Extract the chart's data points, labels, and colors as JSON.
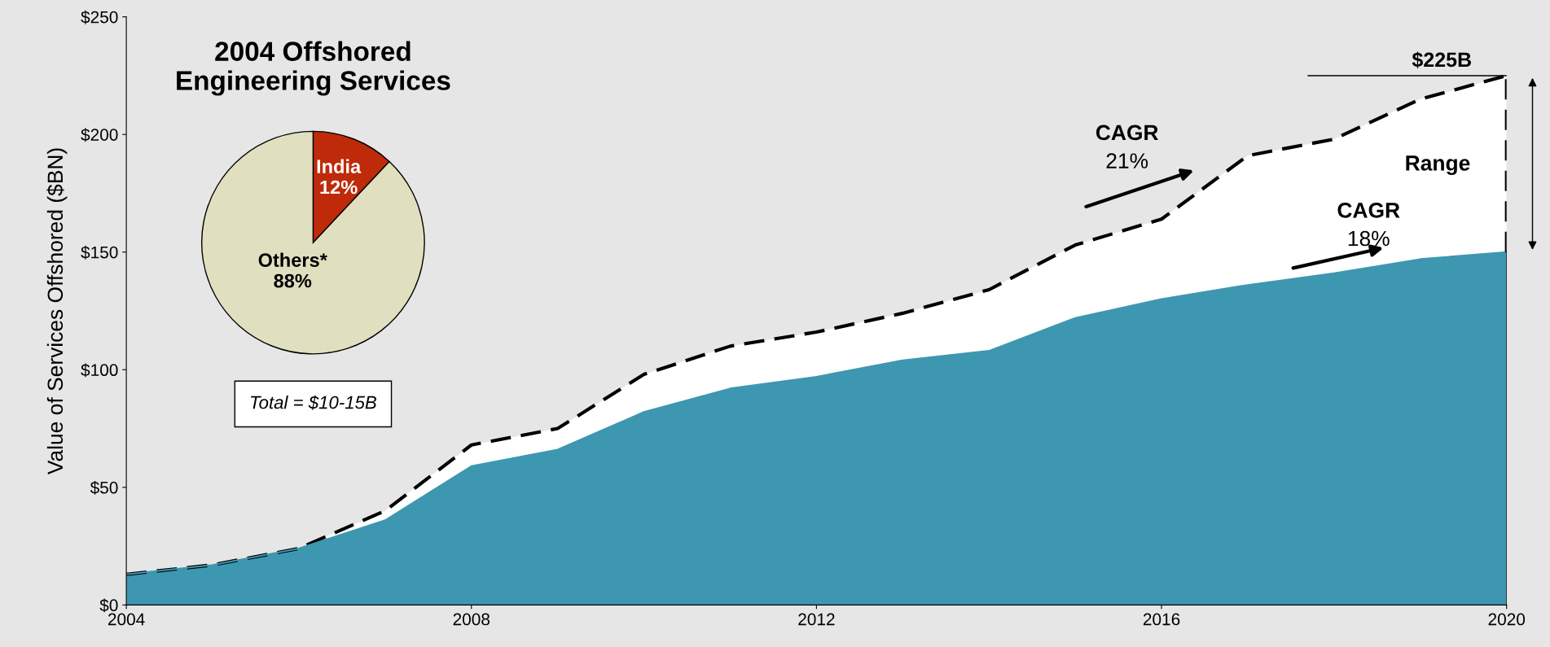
{
  "chart_data": [
    {
      "type": "area",
      "x": [
        2004,
        2005,
        2006,
        2007,
        2008,
        2009,
        2010,
        2011,
        2012,
        2013,
        2014,
        2015,
        2016,
        2017,
        2018,
        2019,
        2020
      ],
      "series": [
        {
          "color": "#3e97b0",
          "line_style": "solid",
          "values": [
            13,
            17,
            24,
            36,
            59,
            66,
            82,
            92,
            97,
            104,
            108,
            122,
            130,
            136,
            141,
            147,
            150
          ]
        },
        {
          "color": "#ffffff",
          "line_style": "dashed",
          "values": [
            13,
            17,
            24,
            40,
            68,
            75,
            98,
            110,
            116,
            124,
            134,
            153,
            164,
            191,
            198,
            215,
            225
          ]
        }
      ],
      "ylabel": "Value of Services Offshored ($BN)",
      "xlim": [
        2004,
        2020
      ],
      "xticks": [
        2004,
        2008,
        2012,
        2016,
        2020
      ],
      "ylim": [
        0,
        250
      ],
      "yticks": [
        {
          "value": 0,
          "label": "$0"
        },
        {
          "value": 50,
          "label": "$50"
        },
        {
          "value": 100,
          "label": "$100"
        },
        {
          "value": 150,
          "label": "$150"
        },
        {
          "value": 200,
          "label": "$200"
        },
        {
          "value": 250,
          "label": "$250"
        }
      ],
      "ref_lines": [
        {
          "axis": "y",
          "value": 225,
          "label": "$225B",
          "color": "#000000"
        }
      ],
      "annotations": [
        "Range",
        "CAGR",
        "21%",
        "CAGR",
        "18%"
      ],
      "grid": false
    },
    {
      "type": "pie",
      "title": "2004 Offshored\nEngineering Services",
      "categories": [
        "India",
        "Others*"
      ],
      "values": [
        12,
        88
      ],
      "colors": [
        "#bf2a0a",
        "#e0e0c0"
      ],
      "value_labels": [
        "12%",
        "88%"
      ],
      "annotations": [
        "Total = $10-15B"
      ]
    }
  ]
}
